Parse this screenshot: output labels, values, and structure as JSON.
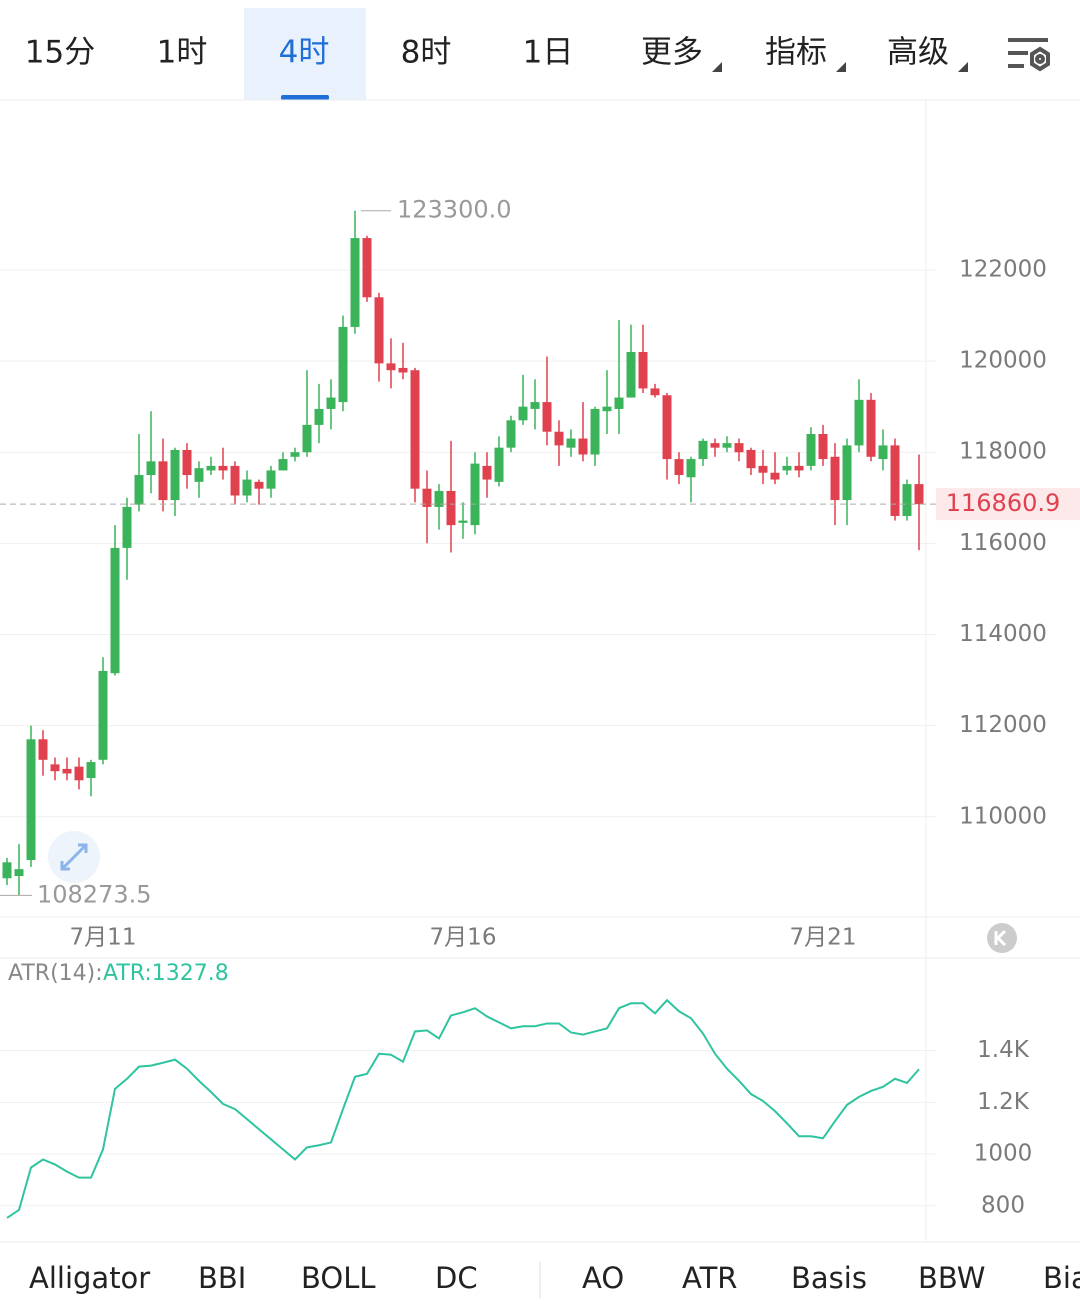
{
  "tabs": [
    "15分",
    "1时",
    "4时",
    "8时",
    "1日",
    "更多",
    "指标",
    "高级"
  ],
  "active_tab": 2,
  "chart_data": [
    {
      "type": "candlestick",
      "categories": [
        null,
        null,
        null,
        null,
        null,
        null,
        null,
        null,
        "7月11",
        null,
        null,
        null,
        null,
        null,
        null,
        null,
        null,
        null,
        null,
        null,
        null,
        null,
        null,
        null,
        null,
        null,
        null,
        null,
        null,
        null,
        null,
        null,
        null,
        null,
        null,
        null,
        null,
        null,
        "7月16",
        null,
        null,
        null,
        null,
        null,
        null,
        null,
        null,
        null,
        null,
        null,
        null,
        null,
        null,
        null,
        null,
        null,
        null,
        null,
        null,
        null,
        null,
        null,
        null,
        null,
        null,
        null,
        null,
        null,
        "7月21",
        null,
        null,
        null,
        null,
        null,
        null,
        null,
        null
      ],
      "open": [
        108650,
        108700,
        109050,
        111700,
        111150,
        111050,
        111100,
        110850,
        111250,
        113150,
        115900,
        116850,
        117500,
        117800,
        116950,
        118050,
        117350,
        117600,
        117700,
        117700,
        117050,
        117350,
        117200,
        117600,
        117900,
        118000,
        118600,
        118950,
        119100,
        120750,
        122700,
        121400,
        119950,
        119850,
        119800,
        117200,
        116800,
        117150,
        116450,
        116400,
        117700,
        117350,
        118100,
        118700,
        118950,
        119100,
        118450,
        118100,
        118300,
        117950,
        118900,
        118950,
        119200,
        120200,
        119400,
        119250,
        117850,
        117450,
        117850,
        118200,
        118100,
        118200,
        118050,
        117700,
        117550,
        117600,
        117700,
        117700,
        118400,
        117900,
        116950,
        118150,
        119150,
        117850,
        118150,
        116600,
        117300
      ],
      "high": [
        109100,
        109400,
        112000,
        111900,
        111300,
        111300,
        111300,
        111250,
        113500,
        116400,
        117000,
        118400,
        118900,
        118300,
        118100,
        118200,
        117800,
        117900,
        118100,
        117800,
        117600,
        117400,
        117700,
        118000,
        118100,
        119800,
        119500,
        119600,
        121000,
        123300,
        122750,
        121500,
        120500,
        120400,
        119850,
        117600,
        117300,
        118250,
        116900,
        118000,
        118000,
        118350,
        118800,
        119700,
        119600,
        120100,
        118700,
        118500,
        119100,
        119000,
        119800,
        120900,
        120800,
        120800,
        119500,
        119300,
        118000,
        117900,
        118300,
        118300,
        118350,
        118300,
        118100,
        118050,
        118000,
        117900,
        118000,
        118550,
        118600,
        118200,
        118300,
        119600,
        119300,
        118500,
        118300,
        117400,
        117950
      ],
      "low": [
        108500,
        108273.5,
        108900,
        110900,
        110800,
        110800,
        110600,
        110450,
        111150,
        113100,
        115200,
        116700,
        117100,
        116700,
        116600,
        117200,
        117000,
        117500,
        117400,
        116850,
        116900,
        116850,
        117000,
        117600,
        117800,
        117900,
        118200,
        118500,
        118900,
        120600,
        121300,
        119550,
        119400,
        119600,
        116900,
        116000,
        116300,
        115800,
        116100,
        116200,
        117000,
        117250,
        118000,
        118600,
        118500,
        118150,
        117700,
        117900,
        117800,
        117700,
        118400,
        118400,
        119200,
        119300,
        119200,
        117400,
        117300,
        116900,
        117700,
        117900,
        118000,
        117800,
        117500,
        117300,
        117300,
        117500,
        117450,
        117600,
        117700,
        116400,
        116400,
        118000,
        117800,
        117600,
        116500,
        116500,
        115850
      ],
      "close": [
        109000,
        108850,
        111700,
        111250,
        111000,
        110950,
        110800,
        111200,
        113200,
        115900,
        116800,
        117500,
        117800,
        116950,
        118050,
        117500,
        117650,
        117700,
        117600,
        117050,
        117400,
        117200,
        117600,
        117850,
        118000,
        118600,
        118950,
        119200,
        120750,
        122700,
        121400,
        119950,
        119800,
        119750,
        117200,
        116800,
        117150,
        116400,
        116500,
        117750,
        117400,
        118100,
        118700,
        119000,
        119100,
        118450,
        118150,
        118300,
        117950,
        118950,
        119000,
        119200,
        120200,
        119400,
        119250,
        117850,
        117500,
        117850,
        118250,
        118100,
        118200,
        118000,
        117650,
        117550,
        117400,
        117700,
        117600,
        118400,
        117850,
        116950,
        118150,
        119150,
        117900,
        118150,
        116600,
        117300,
        116860.9
      ],
      "up_color": "#3bb35a",
      "down_color": "#e0414f",
      "ylim": [
        107800,
        125730
      ],
      "yticks": [
        110000,
        112000,
        114000,
        116000,
        118000,
        120000,
        122000
      ],
      "grid": true,
      "max_label": {
        "value": 123300,
        "label": "123300.0"
      },
      "min_label": 108273.5,
      "last_price": 116860.9
    },
    {
      "type": "line",
      "legend_title": "ATR(14):",
      "series": [
        {
          "name": "ATR:1327.8",
          "color": "#2ec4a0",
          "values": [
            753,
            784,
            948,
            979,
            960,
            932,
            909,
            909,
            1018,
            1252,
            1291,
            1338,
            1342,
            1353,
            1365,
            1330,
            1283,
            1240,
            1194,
            1174,
            1135,
            1096,
            1057,
            1018,
            979,
            1026,
            1034,
            1045,
            1174,
            1299,
            1310,
            1388,
            1384,
            1357,
            1474,
            1478,
            1447,
            1536,
            1548,
            1564,
            1532,
            1509,
            1486,
            1494,
            1494,
            1505,
            1505,
            1470,
            1462,
            1474,
            1486,
            1564,
            1583,
            1583,
            1544,
            1595,
            1552,
            1525,
            1466,
            1388,
            1330,
            1283,
            1232,
            1205,
            1166,
            1119,
            1069,
            1069,
            1061,
            1127,
            1190,
            1221,
            1244,
            1260,
            1291,
            1275,
            1327.8
          ]
        }
      ],
      "ylim": [
        660,
        1758
      ],
      "yticks": [
        800,
        1000,
        {
          "value": 1200,
          "label": "1.2K"
        },
        {
          "value": 1400,
          "label": "1.4K"
        }
      ],
      "grid": true
    }
  ],
  "indicator_tabs": [
    "Alligator",
    "BBI",
    "BOLL",
    "DC",
    "AO",
    "ATR",
    "Basis",
    "BBW",
    "Bias"
  ],
  "active_indicator": 5
}
